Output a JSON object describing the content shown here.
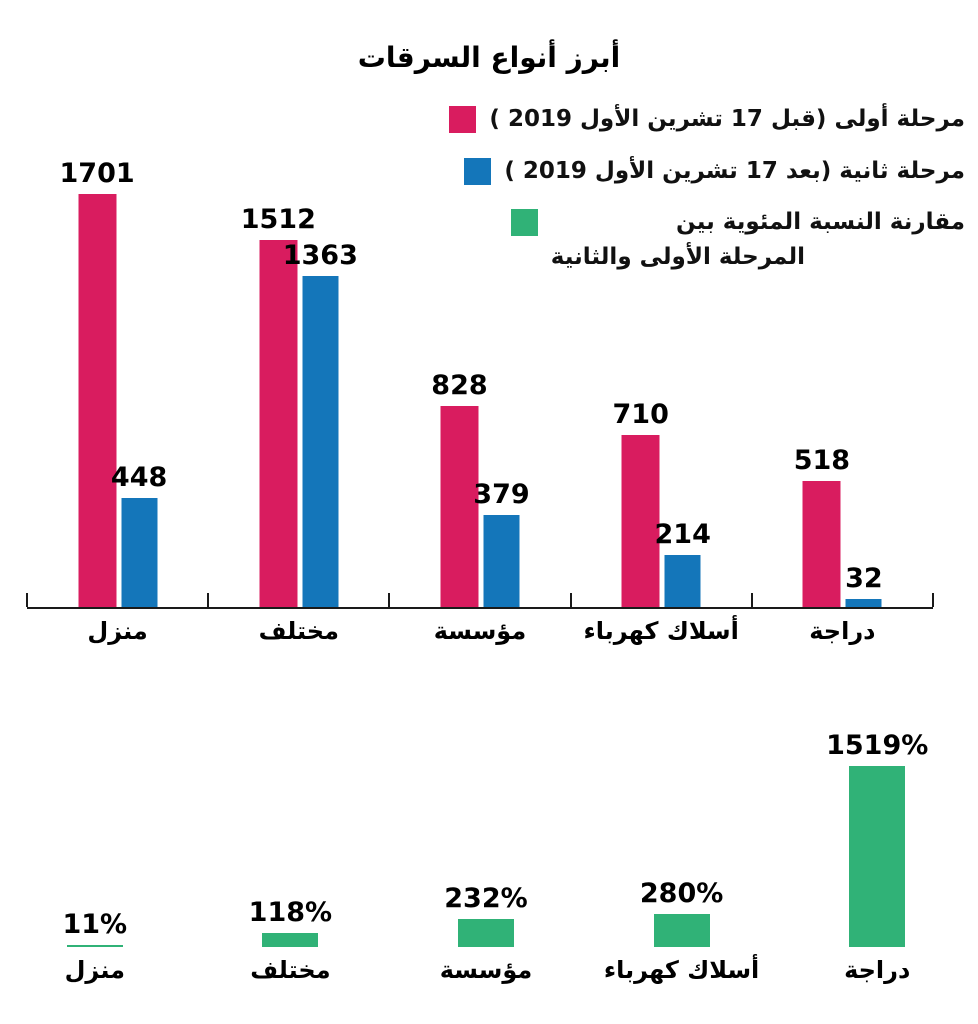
{
  "title": "أبرز أنواع السرقات",
  "legend": {
    "items": [
      {
        "id": "phase-1",
        "color": "#d91c5f",
        "lines": [
          "مرحلة أولى (قبل 17 تشرين الأول 2019 )"
        ]
      },
      {
        "id": "phase-2",
        "color": "#1476ba",
        "lines": [
          "مرحلة ثانية (بعد 17 تشرين الأول 2019 )"
        ]
      },
      {
        "id": "percent-comparison",
        "color": "#30b277",
        "lines": [
          "مقارنة النسبة المئوية بين",
          "المرحلة الأولى والثانية"
        ]
      }
    ]
  },
  "chart_data": [
    {
      "type": "bar",
      "title": "أبرز أنواع السرقات",
      "categories": [
        "منزل",
        "مختلف",
        "مؤسسة",
        "أسلاك كهرباء",
        "دراجة"
      ],
      "series": [
        {
          "name": "مرحلة أولى (قبل 17 تشرين الأول 2019)",
          "color": "#d91c5f",
          "values": [
            1701,
            1512,
            828,
            710,
            518
          ]
        },
        {
          "name": "مرحلة ثانية (بعد 17 تشرين الأول 2019)",
          "color": "#1476ba",
          "values": [
            448,
            1363,
            379,
            214,
            32
          ]
        }
      ],
      "value_labels": true,
      "ylim": [
        0,
        1750
      ],
      "grid": false,
      "legend_position": "top-right"
    },
    {
      "type": "bar",
      "title": "مقارنة النسبة المئوية بين المرحلة الأولى والثانية",
      "categories": [
        "منزل",
        "مختلف",
        "مؤسسة",
        "أسلاك كهرباء",
        "دراجة"
      ],
      "series": [
        {
          "name": "مقارنة النسبة المئوية بين المرحلة الأولى والثانية",
          "color": "#30b277",
          "values": [
            11,
            118,
            232,
            280,
            1519
          ],
          "unit": "%"
        }
      ],
      "value_labels": true,
      "ylim": [
        0,
        1550
      ],
      "grid": false
    }
  ]
}
